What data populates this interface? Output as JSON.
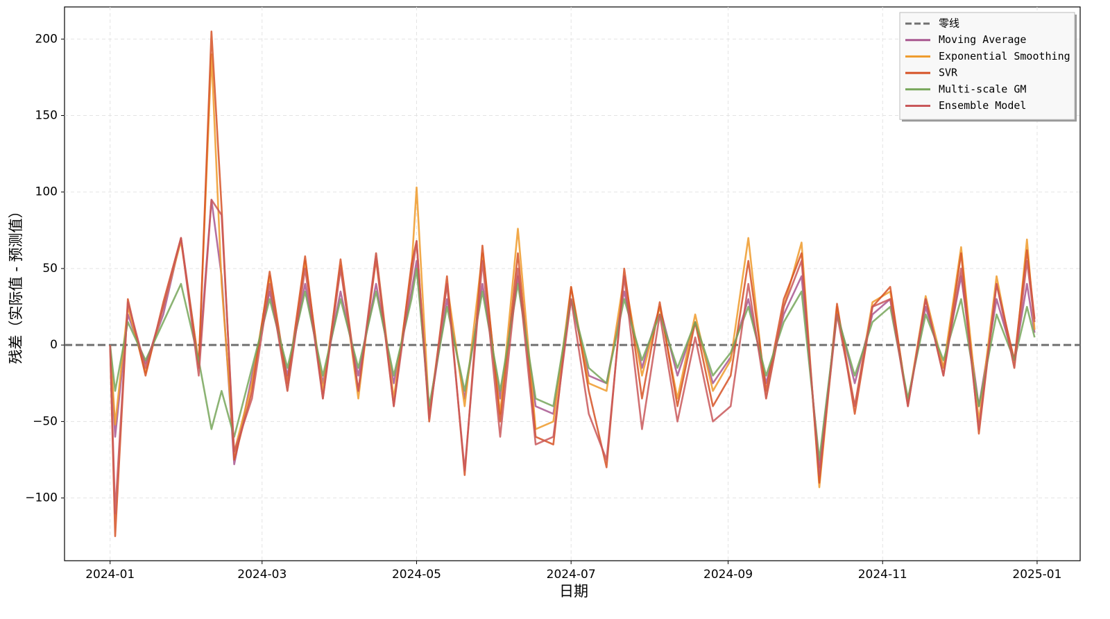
{
  "chart_data": {
    "type": "line",
    "xlabel": "日期",
    "ylabel": "残差（实际值 - 预测值）",
    "reference_line": {
      "name": "零线",
      "value": 0,
      "color": "#707070"
    },
    "x": [
      0,
      2,
      7,
      14,
      21,
      28,
      35,
      40,
      44,
      49,
      56,
      63,
      70,
      77,
      84,
      91,
      98,
      105,
      112,
      119,
      121,
      126,
      133,
      140,
      147,
      154,
      161,
      168,
      175,
      182,
      189,
      196,
      203,
      210,
      217,
      224,
      231,
      238,
      245,
      252,
      259,
      266,
      273,
      280,
      287,
      294,
      301,
      308,
      315,
      322,
      329,
      336,
      343,
      350,
      357,
      362,
      365
    ],
    "xlim": [
      -18,
      383
    ],
    "xticks": [
      {
        "value": 0,
        "label": "2024-01"
      },
      {
        "value": 60,
        "label": "2024-03"
      },
      {
        "value": 121,
        "label": "2024-05"
      },
      {
        "value": 182,
        "label": "2024-07"
      },
      {
        "value": 244,
        "label": "2024-09"
      },
      {
        "value": 305,
        "label": "2024-11"
      },
      {
        "value": 366,
        "label": "2025-01"
      }
    ],
    "ylim": [
      -141,
      221
    ],
    "yticks": [
      {
        "value": -100,
        "label": "−100"
      },
      {
        "value": -50,
        "label": "−50"
      },
      0,
      50,
      100,
      150,
      200
    ],
    "grid": true,
    "legend": "upper right",
    "series": [
      {
        "name": "Moving Average",
        "color": "#a8578f",
        "values": [
          0,
          -60,
          20,
          -12,
          20,
          70,
          -12,
          95,
          45,
          -78,
          -20,
          35,
          -20,
          40,
          -25,
          35,
          -20,
          40,
          -25,
          35,
          55,
          -45,
          30,
          -35,
          40,
          -35,
          45,
          -40,
          -45,
          30,
          -20,
          -25,
          35,
          -15,
          25,
          -20,
          15,
          -25,
          -8,
          30,
          -25,
          20,
          45,
          -80,
          22,
          -25,
          20,
          30,
          -38,
          25,
          -15,
          45,
          -40,
          30,
          -10,
          40,
          8
        ]
      },
      {
        "name": "Exponential Smoothing",
        "color": "#ee9a2a",
        "values": [
          0,
          -52,
          25,
          -18,
          25,
          68,
          -12,
          190,
          40,
          -70,
          -25,
          45,
          -30,
          55,
          -30,
          52,
          -35,
          60,
          -35,
          50,
          103,
          -45,
          40,
          -40,
          60,
          -45,
          76,
          -55,
          -50,
          38,
          -25,
          -30,
          45,
          -20,
          25,
          -35,
          20,
          -30,
          -10,
          70,
          -35,
          25,
          67,
          -93,
          25,
          -40,
          28,
          35,
          -38,
          32,
          -15,
          64,
          -50,
          45,
          -15,
          69,
          10
        ]
      },
      {
        "name": "SVR",
        "color": "#d65226",
        "values": [
          0,
          -125,
          30,
          -20,
          28,
          70,
          -15,
          205,
          90,
          -75,
          -30,
          48,
          -25,
          58,
          -35,
          56,
          -30,
          56,
          -40,
          53,
          68,
          -50,
          45,
          -85,
          65,
          -50,
          60,
          -60,
          -65,
          38,
          -30,
          -80,
          50,
          -35,
          28,
          -40,
          15,
          -40,
          -20,
          55,
          -30,
          30,
          60,
          -90,
          27,
          -45,
          25,
          38,
          -40,
          30,
          -20,
          60,
          -58,
          40,
          -10,
          62,
          17
        ]
      },
      {
        "name": "Multi-scale GM",
        "color": "#77a65a",
        "values": [
          0,
          -30,
          15,
          -10,
          15,
          40,
          -10,
          -55,
          -30,
          -60,
          -15,
          30,
          -15,
          35,
          -20,
          30,
          -15,
          35,
          -20,
          30,
          50,
          -40,
          25,
          -30,
          35,
          -30,
          40,
          -35,
          -40,
          30,
          -15,
          -25,
          30,
          -10,
          20,
          -15,
          15,
          -20,
          -5,
          25,
          -20,
          15,
          35,
          -75,
          20,
          -20,
          15,
          25,
          -35,
          20,
          -10,
          30,
          -40,
          20,
          -10,
          25,
          5
        ]
      },
      {
        "name": "Ensemble Model",
        "color": "#c9585a",
        "values": [
          0,
          -110,
          28,
          -15,
          25,
          70,
          -20,
          95,
          85,
          -70,
          -35,
          40,
          -30,
          50,
          -35,
          50,
          -30,
          60,
          -40,
          45,
          68,
          -48,
          40,
          -82,
          55,
          -60,
          50,
          -65,
          -60,
          30,
          -45,
          -75,
          45,
          -55,
          20,
          -50,
          5,
          -50,
          -40,
          40,
          -35,
          25,
          55,
          -85,
          20,
          -40,
          25,
          30,
          -40,
          30,
          -20,
          50,
          -55,
          40,
          -15,
          55,
          15
        ]
      }
    ]
  }
}
